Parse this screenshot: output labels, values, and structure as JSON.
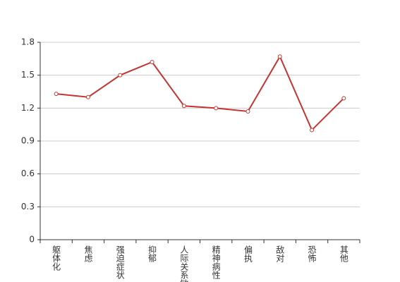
{
  "chart_data": {
    "type": "line",
    "categories": [
      "躯体化",
      "焦虑",
      "强迫症状",
      "抑郁",
      "人际关系敏感",
      "精神病性",
      "偏执",
      "敌对",
      "恐怖",
      "其他"
    ],
    "values": [
      1.33,
      1.3,
      1.5,
      1.62,
      1.22,
      1.2,
      1.17,
      1.67,
      1.0,
      1.29
    ],
    "color": "#c23531",
    "ylim": [
      0,
      1.8
    ],
    "yticks": [
      0,
      0.3,
      0.6,
      0.9,
      1.2,
      1.5,
      1.8
    ],
    "grid": true
  }
}
